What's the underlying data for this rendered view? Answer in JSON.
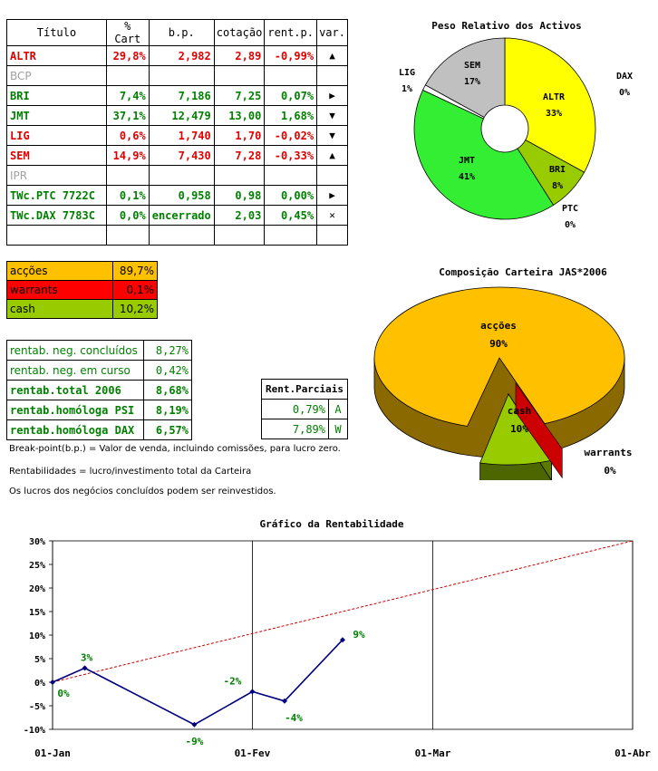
{
  "holdings": {
    "headers": [
      "Título",
      "% Cart",
      "b.p.",
      "cotação",
      "rent.p.",
      "var."
    ],
    "rows": [
      {
        "titulo": "ALTR",
        "cart": "29,8%",
        "bp": "2,982",
        "cotacao": "2,89",
        "rent": "-0,99%",
        "var": "▲",
        "style": "red"
      },
      {
        "titulo": "BCP",
        "cart": "",
        "bp": "",
        "cotacao": "",
        "rent": "",
        "var": "",
        "style": "gray"
      },
      {
        "titulo": "BRI",
        "cart": "7,4%",
        "bp": "7,186",
        "cotacao": "7,25",
        "rent": "0,07%",
        "var": "▶",
        "style": "green"
      },
      {
        "titulo": "JMT",
        "cart": "37,1%",
        "bp": "12,479",
        "cotacao": "13,00",
        "rent": "1,68%",
        "var": "▼",
        "style": "green"
      },
      {
        "titulo": "LIG",
        "cart": "0,6%",
        "bp": "1,740",
        "cotacao": "1,70",
        "rent": "-0,02%",
        "var": "▼",
        "style": "red"
      },
      {
        "titulo": "SEM",
        "cart": "14,9%",
        "bp": "7,430",
        "cotacao": "7,28",
        "rent": "-0,33%",
        "var": "▲",
        "style": "red"
      },
      {
        "titulo": "IPR",
        "cart": "",
        "bp": "",
        "cotacao": "",
        "rent": "",
        "var": "",
        "style": "gray"
      },
      {
        "titulo": "TWc.PTC 7722C",
        "cart": "0,1%",
        "bp": "0,958",
        "cotacao": "0,98",
        "rent": "0,00%",
        "var": "▶",
        "style": "green"
      },
      {
        "titulo": "TWc.DAX 7783C",
        "cart": "0,0%",
        "bp": "encerrado",
        "cotacao": "2,03",
        "rent": "0,45%",
        "var": "✕",
        "style": "green"
      },
      {
        "titulo": "",
        "cart": "",
        "bp": "",
        "cotacao": "",
        "rent": "",
        "var": "",
        "style": "green"
      }
    ]
  },
  "allocation": [
    {
      "label": "acções",
      "value": "89,7%",
      "color": "#ffc000"
    },
    {
      "label": "warrants",
      "value": "0,1%",
      "color": "#ff0000"
    },
    {
      "label": "cash",
      "value": "10,2%",
      "color": "#99cc00"
    }
  ],
  "returns": [
    {
      "label": "rentab. neg. concluídos",
      "value": "8,27%",
      "bold": false
    },
    {
      "label": "rentab. neg. em curso",
      "value": "0,42%",
      "bold": false
    },
    {
      "label": "rentab.total 2006",
      "value": "8,68%",
      "bold": true
    },
    {
      "label": "rentab.homóloga PSI",
      "value": "8,19%",
      "bold": true
    },
    {
      "label": "rentab.homóloga DAX",
      "value": "6,57%",
      "bold": true
    }
  ],
  "partial": {
    "header": "Rent.Parciais",
    "rows": [
      {
        "value": "0,79%",
        "tag": "A"
      },
      {
        "value": "7,89%",
        "tag": "W"
      }
    ]
  },
  "notes": [
    "Break-point(b.p.) = Valor de venda, incluindo comissões, para lucro zero.",
    "Rentabilidades = lucro/investimento total da Carteira",
    "Os lucros dos negócios concluídos podem ser reinvestidos."
  ],
  "chart_data": [
    {
      "type": "pie",
      "title": "Peso Relativo dos Activos",
      "slices": [
        {
          "label": "ALTR",
          "value": 33,
          "display": "33%",
          "color": "#ffff00"
        },
        {
          "label": "BRI",
          "value": 8,
          "display": "8%",
          "color": "#99cc00"
        },
        {
          "label": "PTC",
          "value": 0,
          "display": "0%",
          "color": "#33cc33"
        },
        {
          "label": "JMT",
          "value": 41,
          "display": "41%",
          "color": "#33ee33"
        },
        {
          "label": "LIG",
          "value": 1,
          "display": "1%",
          "color": "#ffffff"
        },
        {
          "label": "SEM",
          "value": 17,
          "display": "17%",
          "color": "#c0c0c0"
        },
        {
          "label": "DAX",
          "value": 0,
          "display": "0%",
          "color": "#ffff99"
        }
      ]
    },
    {
      "type": "pie",
      "title": "Composição Carteira JAS*2006",
      "slices": [
        {
          "label": "acções",
          "value": 90,
          "display": "90%",
          "color": "#ffc000"
        },
        {
          "label": "cash",
          "value": 10,
          "display": "10%",
          "color": "#99cc00"
        },
        {
          "label": "warrants",
          "value": 0,
          "display": "0%",
          "color": "#cc0000"
        }
      ]
    },
    {
      "type": "line",
      "title": "Gráfico da Rentabilidade",
      "x_ticks": [
        "01-Jan",
        "01-Fev",
        "01-Mar",
        "01-Abr"
      ],
      "y_ticks": [
        "30%",
        "25%",
        "20%",
        "15%",
        "10%",
        "5%",
        "0%",
        "-5%",
        "-10%"
      ],
      "ylim": [
        -10,
        30
      ],
      "xlim": [
        "2006-01-01",
        "2006-04-01"
      ],
      "grid": "vertical",
      "series": [
        {
          "line": "solid",
          "color": "#000080",
          "points": [
            {
              "x": "2006-01-01",
              "y": 0,
              "label": "0%"
            },
            {
              "x": "2006-01-06",
              "y": 3,
              "label": "3%"
            },
            {
              "x": "2006-01-23",
              "y": -9,
              "label": "-9%"
            },
            {
              "x": "2006-02-01",
              "y": -2,
              "label": "-2%"
            },
            {
              "x": "2006-02-06",
              "y": -4,
              "label": "-4%"
            },
            {
              "x": "2006-02-15",
              "y": 9,
              "label": "9%"
            }
          ]
        },
        {
          "line": "dashed",
          "color": "#cc0000",
          "points": [
            {
              "x": "2006-01-01",
              "y": 0
            },
            {
              "x": "2006-04-01",
              "y": 30
            }
          ]
        }
      ]
    }
  ]
}
